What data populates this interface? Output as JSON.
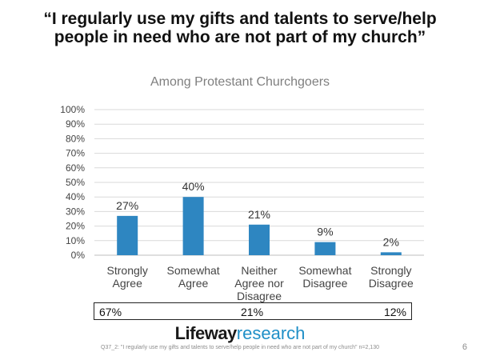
{
  "title": "“I regularly use my gifts and talents to serve/help people in need who are not part of my church”",
  "chart_data": {
    "type": "bar",
    "title": "Among Protestant Churchgoers",
    "categories": [
      [
        "Strongly",
        "Agree"
      ],
      [
        "Somewhat",
        "Agree"
      ],
      [
        "Neither",
        "Agree nor",
        "Disagree"
      ],
      [
        "Somewhat",
        "Disagree"
      ],
      [
        "Strongly",
        "Disagree"
      ]
    ],
    "values": [
      27,
      40,
      21,
      9,
      2
    ],
    "data_labels": [
      "27%",
      "40%",
      "21%",
      "9%",
      "2%"
    ],
    "ylim": [
      0,
      100
    ],
    "yticks": [
      0,
      10,
      20,
      30,
      40,
      50,
      60,
      70,
      80,
      90,
      100
    ],
    "ytick_labels": [
      "0%",
      "10%",
      "20%",
      "30%",
      "40%",
      "50%",
      "60%",
      "70%",
      "80%",
      "90%",
      "100%"
    ],
    "grid": true,
    "bar_color": "#2e86c1"
  },
  "summary": {
    "agree": "67%",
    "neither": "21%",
    "disagree": "12%"
  },
  "logo": {
    "part1": "Lifeway",
    "part2": "research"
  },
  "footnote": "Q37_2: \"I regularly use my gifts and talents to serve/help people in need who are not part of my church\"  n=2,130",
  "page_number": "6"
}
